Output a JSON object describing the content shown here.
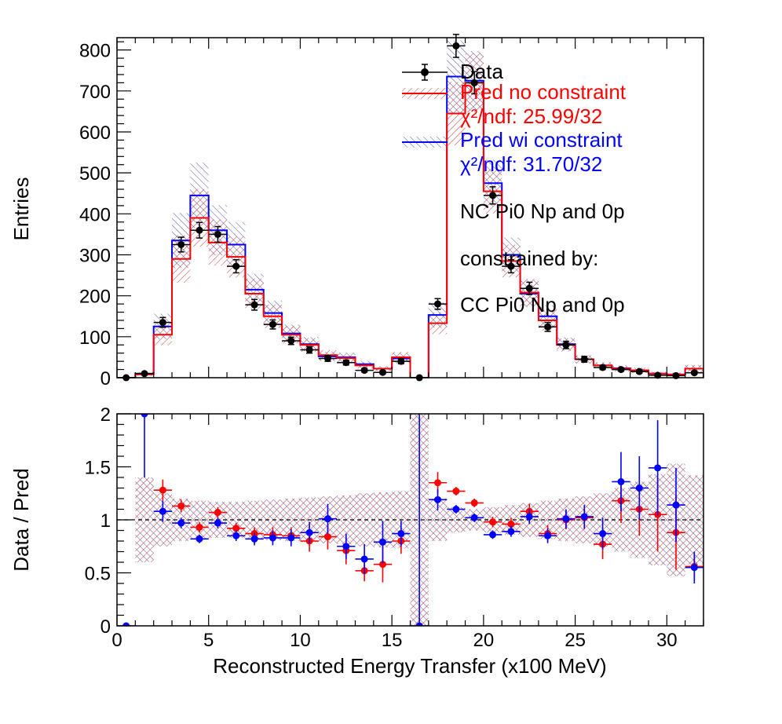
{
  "chart_data": [
    {
      "type": "histogram",
      "panel": "top",
      "ylabel": "Entries",
      "xlim": [
        0,
        32
      ],
      "ylim": [
        0,
        830
      ],
      "yticks": [
        0,
        100,
        200,
        300,
        400,
        500,
        600,
        700,
        800
      ],
      "bin_edges": [
        0,
        1,
        2,
        3,
        4,
        5,
        6,
        7,
        8,
        9,
        10,
        11,
        12,
        13,
        14,
        15,
        16,
        17,
        18,
        19,
        20,
        21,
        22,
        23,
        24,
        25,
        26,
        27,
        28,
        29,
        30,
        31,
        32
      ],
      "series": [
        {
          "name": "Data",
          "kind": "points",
          "color": "#000000",
          "x": [
            0.5,
            1.5,
            2.5,
            3.5,
            4.5,
            5.5,
            6.5,
            7.5,
            8.5,
            9.5,
            10.5,
            11.5,
            12.5,
            13.5,
            14.5,
            15.5,
            16.5,
            17.5,
            18.5,
            19.5,
            20.5,
            21.5,
            22.5,
            23.5,
            24.5,
            25.5,
            26.5,
            27.5,
            28.5,
            29.5,
            30.5,
            31.5
          ],
          "values": [
            0,
            10,
            135,
            325,
            360,
            350,
            272,
            178,
            130,
            90,
            68,
            47,
            37,
            18,
            13,
            40,
            0,
            180,
            810,
            720,
            445,
            272,
            218,
            124,
            80,
            45,
            25,
            20,
            15,
            6,
            5,
            12
          ],
          "errors": [
            0,
            3,
            12,
            18,
            19,
            19,
            16,
            13,
            11,
            9,
            8,
            7,
            6,
            4,
            4,
            6,
            0,
            13,
            28,
            27,
            21,
            16,
            15,
            11,
            9,
            7,
            5,
            4,
            4,
            2,
            2,
            3
          ]
        },
        {
          "name": "Pred no constraint",
          "kind": "step",
          "color": "#ff0000",
          "values": [
            0,
            8,
            105,
            290,
            390,
            330,
            295,
            205,
            150,
            105,
            80,
            55,
            48,
            30,
            22,
            50,
            0,
            133,
            645,
            720,
            455,
            285,
            208,
            140,
            80,
            45,
            30,
            22,
            18,
            10,
            8,
            22
          ],
          "chi2_label": "χ²/ndf: 25.99/32"
        },
        {
          "name": "Pred wi constraint",
          "kind": "step",
          "color": "#0000ff",
          "values": [
            0,
            10,
            125,
            335,
            445,
            360,
            325,
            215,
            158,
            108,
            82,
            52,
            50,
            33,
            22,
            47,
            0,
            153,
            735,
            725,
            475,
            300,
            205,
            150,
            82,
            45,
            30,
            23,
            18,
            10,
            8,
            22
          ],
          "chi2_label": "χ²/ndf: 31.70/32"
        }
      ],
      "annotations": [
        "NC Pi0 Np and 0p",
        "constrained by:",
        "CC Pi0 Np and 0p"
      ],
      "legend_placement": "top-right"
    },
    {
      "type": "scatter",
      "panel": "bottom",
      "xlabel": "Reconstructed Energy Transfer (x100 MeV)",
      "ylabel": "Data / Pred",
      "xlim": [
        0,
        32
      ],
      "ylim": [
        0,
        2
      ],
      "xticks": [
        0,
        5,
        10,
        15,
        20,
        25,
        30
      ],
      "yticks": [
        0,
        0.5,
        1,
        1.5,
        2
      ],
      "reference_line": 1,
      "band_half_width": [
        0.4,
        0.4,
        0.25,
        0.2,
        0.18,
        0.17,
        0.17,
        0.18,
        0.19,
        0.2,
        0.21,
        0.22,
        0.23,
        0.25,
        0.26,
        0.27,
        1.0,
        0.2,
        0.12,
        0.1,
        0.12,
        0.14,
        0.16,
        0.18,
        0.2,
        0.22,
        0.25,
        0.3,
        0.36,
        0.43,
        0.53,
        0.42
      ],
      "series": [
        {
          "name": "Data / Pred no constraint",
          "color": "#ff0000",
          "x": [
            2.5,
            3.5,
            4.5,
            5.5,
            6.5,
            7.5,
            8.5,
            9.5,
            10.5,
            11.5,
            12.5,
            13.5,
            14.5,
            15.5,
            17.5,
            18.5,
            19.5,
            20.5,
            21.5,
            22.5,
            23.5,
            24.5,
            25.5,
            26.5,
            27.5,
            28.5,
            29.5,
            30.5,
            31.5
          ],
          "values": [
            1.28,
            1.13,
            0.93,
            1.07,
            0.92,
            0.87,
            0.86,
            0.85,
            0.8,
            0.84,
            0.71,
            0.52,
            0.58,
            0.8,
            1.35,
            1.27,
            1.16,
            0.98,
            0.96,
            1.08,
            0.87,
            1.0,
            1.02,
            0.77,
            1.18,
            1.1,
            1.05,
            0.88,
            0.56
          ],
          "errors": [
            0.1,
            0.06,
            0.05,
            0.05,
            0.05,
            0.06,
            0.07,
            0.08,
            0.1,
            0.12,
            0.13,
            0.1,
            0.17,
            0.12,
            0.1,
            0.04,
            0.04,
            0.05,
            0.06,
            0.07,
            0.08,
            0.09,
            0.11,
            0.14,
            0.21,
            0.25,
            0.35,
            0.35,
            0.12
          ]
        },
        {
          "name": "Data / Pred wi constraint",
          "color": "#0000ff",
          "x": [
            0.5,
            1.5,
            2.5,
            3.5,
            4.5,
            5.5,
            6.5,
            7.5,
            8.5,
            9.5,
            10.5,
            11.5,
            12.5,
            13.5,
            14.5,
            15.5,
            16.5,
            17.5,
            18.5,
            19.5,
            20.5,
            21.5,
            22.5,
            23.5,
            24.5,
            25.5,
            26.5,
            27.5,
            28.5,
            29.5,
            30.5,
            31.5
          ],
          "values": [
            0,
            2.0,
            1.08,
            0.97,
            0.82,
            0.97,
            0.85,
            0.82,
            0.83,
            0.83,
            0.88,
            1.01,
            0.75,
            0.63,
            0.79,
            0.87,
            0,
            1.19,
            1.1,
            1.02,
            0.86,
            0.89,
            1.03,
            0.85,
            1.01,
            1.03,
            0.87,
            1.36,
            1.3,
            1.49,
            1.14,
            0.55
          ],
          "errors": [
            0,
            0.6,
            0.1,
            0.05,
            0.04,
            0.05,
            0.05,
            0.06,
            0.07,
            0.08,
            0.1,
            0.14,
            0.12,
            0.14,
            0.2,
            0.12,
            2.0,
            0.1,
            0.04,
            0.04,
            0.04,
            0.05,
            0.07,
            0.07,
            0.09,
            0.11,
            0.15,
            0.28,
            0.3,
            0.45,
            0.35,
            0.15
          ]
        }
      ]
    }
  ]
}
